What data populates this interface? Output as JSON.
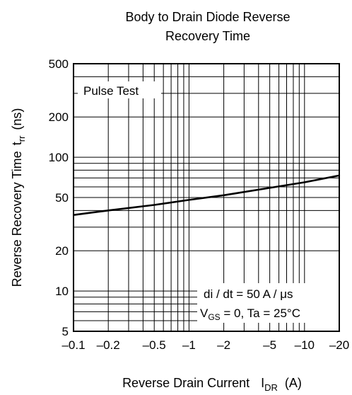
{
  "chart_data": {
    "type": "line",
    "title_line1": "Body to Drain Diode Reverse",
    "title_line2": "Recovery Time",
    "ylabel_main": "Reverse Recovery Time",
    "ylabel_symbol_t": "t",
    "ylabel_symbol_sub": "rr",
    "ylabel_unit": "(ns)",
    "xlabel_main": "Reverse Drain Current",
    "xlabel_symbol_i": "I",
    "xlabel_symbol_sub": "DR",
    "xlabel_unit": "(A)",
    "x_scale": "log (reversed, negative)",
    "y_scale": "log",
    "xlim": [
      -0.1,
      -20
    ],
    "ylim": [
      5,
      500
    ],
    "grid": true,
    "x_ticks": [
      {
        "value": -0.1,
        "label": "–0.1"
      },
      {
        "value": -0.2,
        "label": "–0.2"
      },
      {
        "value": -0.5,
        "label": "–0.5"
      },
      {
        "value": -1,
        "label": "–1"
      },
      {
        "value": -2,
        "label": "–2"
      },
      {
        "value": -5,
        "label": "–5"
      },
      {
        "value": -10,
        "label": "–10"
      },
      {
        "value": -20,
        "label": "–20"
      }
    ],
    "y_ticks": [
      {
        "value": 5,
        "label": "5"
      },
      {
        "value": 10,
        "label": "10"
      },
      {
        "value": 20,
        "label": "20"
      },
      {
        "value": 50,
        "label": "50"
      },
      {
        "value": 100,
        "label": "100"
      },
      {
        "value": 200,
        "label": "200"
      },
      {
        "value": 500,
        "label": "500"
      }
    ],
    "series": [
      {
        "x": [
          -0.1,
          -0.2,
          -0.5,
          -1,
          -2,
          -5,
          -10,
          -20
        ],
        "y": [
          37,
          40,
          44,
          48,
          52,
          59,
          65,
          73
        ]
      }
    ],
    "annotations": {
      "pulse_test": "Pulse Test",
      "cond_line1": "di / dt = 50 A / μs",
      "cond_line2_v": "V",
      "cond_line2_sub": "GS",
      "cond_line2_rest": " = 0, Ta = 25°C"
    }
  }
}
